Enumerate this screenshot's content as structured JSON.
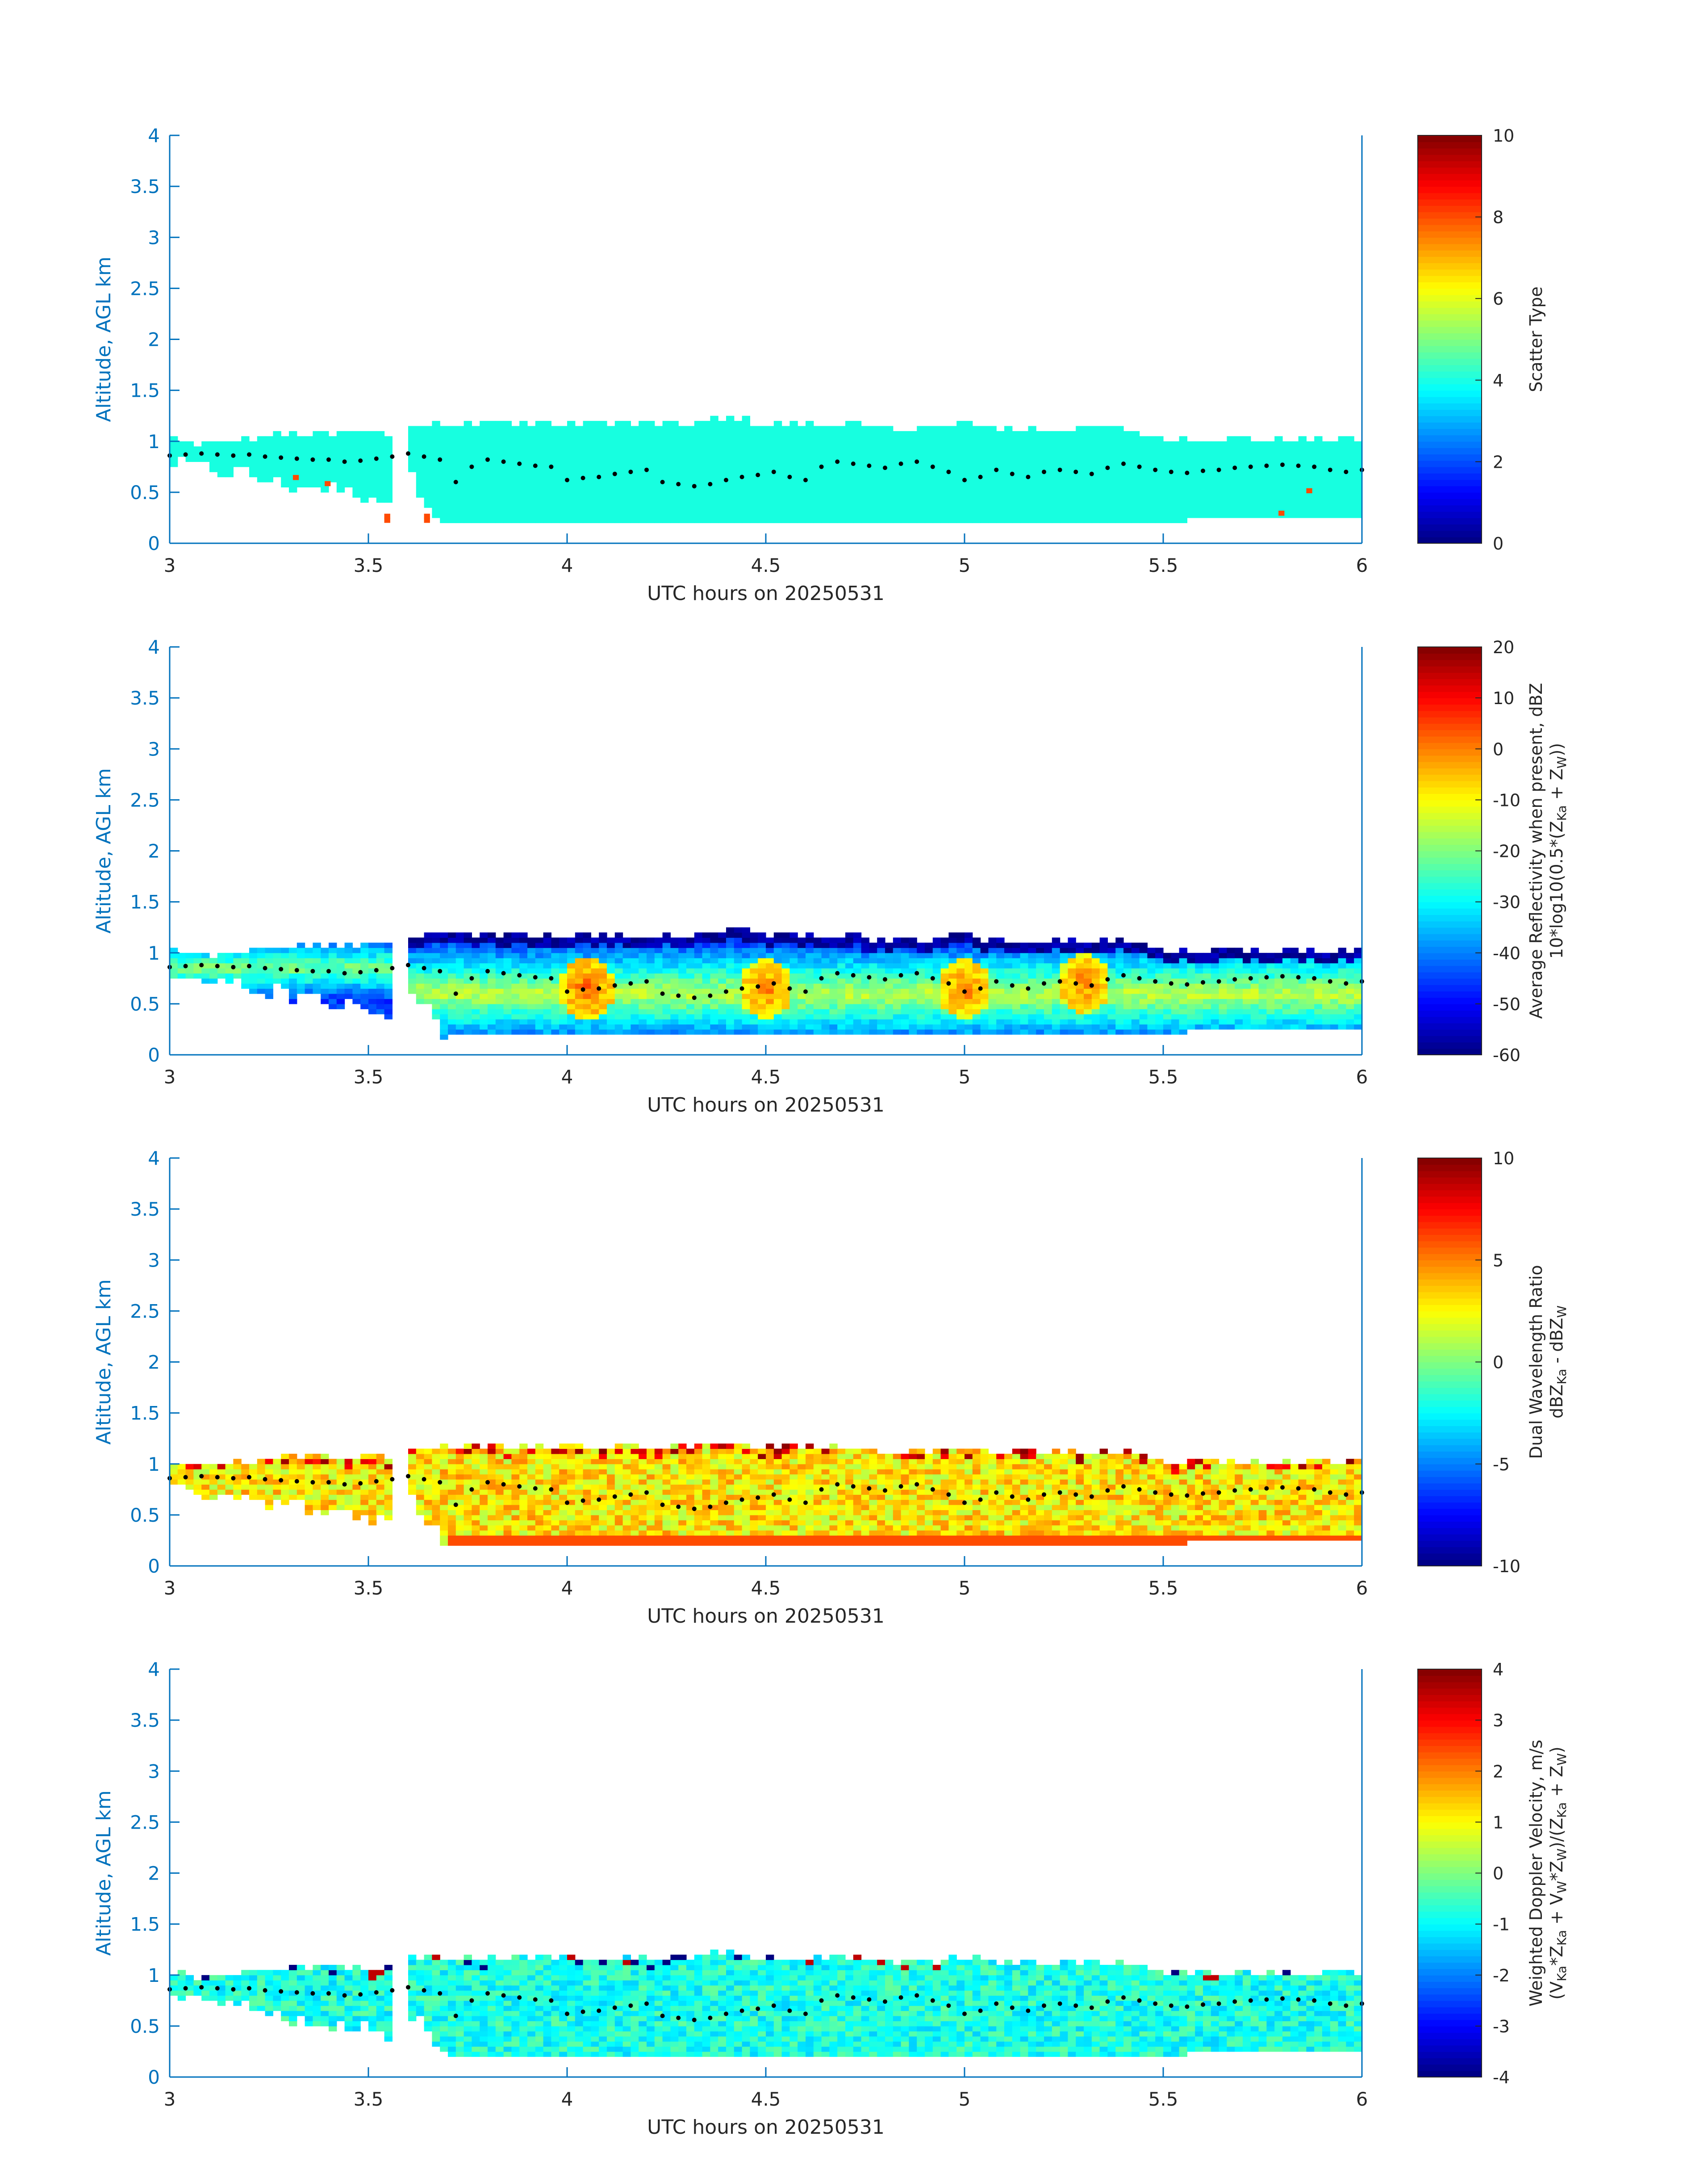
{
  "figure": {
    "colors": {
      "axis_blue": "#0072BD",
      "text_dark": "#262626",
      "cloud_cyan": "#17FFE0",
      "orange_flag": "#FF4A00",
      "marker_black": "#000000"
    },
    "colormap": "jet"
  },
  "chart_data": [
    {
      "type": "heatmap",
      "title": "",
      "xlabel": "UTC hours on 20250531",
      "ylabel": "Altitude, AGL km",
      "xlim": [
        3,
        6
      ],
      "ylim": [
        0,
        4
      ],
      "xticks": [
        "3",
        "3.5",
        "4",
        "4.5",
        "5",
        "5.5",
        "6"
      ],
      "yticks": [
        "0",
        "0.5",
        "1",
        "1.5",
        "2",
        "2.5",
        "3",
        "3.5",
        "4"
      ],
      "colorbar": {
        "label_lines": [
          "Scatter Type"
        ],
        "range": [
          0,
          10
        ],
        "ticks": [
          "0",
          "2",
          "4",
          "6",
          "8",
          "10"
        ]
      },
      "field": "scatter_type",
      "dominant_value": 3.8,
      "outlier_value": 8.5,
      "outlier_cells": [
        {
          "x": 3.31,
          "y": 0.62
        },
        {
          "x": 3.39,
          "y": 0.56
        },
        {
          "x": 3.54,
          "y": 0.24
        },
        {
          "x": 3.54,
          "y": 0.2
        },
        {
          "x": 3.64,
          "y": 0.24
        },
        {
          "x": 3.64,
          "y": 0.2
        },
        {
          "x": 5.79,
          "y": 0.27
        },
        {
          "x": 5.86,
          "y": 0.49
        }
      ]
    },
    {
      "type": "heatmap",
      "title": "",
      "xlabel": "UTC hours on 20250531",
      "ylabel": "Altitude, AGL km",
      "xlim": [
        3,
        6
      ],
      "ylim": [
        0,
        4
      ],
      "xticks": [
        "3",
        "3.5",
        "4",
        "4.5",
        "5",
        "5.5",
        "6"
      ],
      "yticks": [
        "0",
        "0.5",
        "1",
        "1.5",
        "2",
        "2.5",
        "3",
        "3.5",
        "4"
      ],
      "colorbar": {
        "label_lines": [
          "Average Reflectivity when present, dBZ",
          "10*log10(0.5*(Z",
          "Ka",
          " + Z",
          "W",
          "))"
        ],
        "range": [
          -60,
          20
        ],
        "ticks": [
          "-60",
          "-50",
          "-40",
          "-30",
          "-20",
          "-10",
          "0",
          "10",
          "20"
        ]
      },
      "field": "reflectivity_dbz",
      "hotspots_dbz": [
        {
          "x": 4.05,
          "y": 0.65,
          "value": 2
        },
        {
          "x": 4.5,
          "y": 0.65,
          "value": 0
        },
        {
          "x": 5.0,
          "y": 0.65,
          "value": 0
        },
        {
          "x": 5.3,
          "y": 0.7,
          "value": 0
        }
      ]
    },
    {
      "type": "heatmap",
      "title": "",
      "xlabel": "UTC hours on 20250531",
      "ylabel": "Altitude, AGL km",
      "xlim": [
        3,
        6
      ],
      "ylim": [
        0,
        4
      ],
      "xticks": [
        "3",
        "3.5",
        "4",
        "4.5",
        "5",
        "5.5",
        "6"
      ],
      "yticks": [
        "0",
        "0.5",
        "1",
        "1.5",
        "2",
        "2.5",
        "3",
        "3.5",
        "4"
      ],
      "colorbar": {
        "label_lines": [
          "Dual Wavelength Ratio",
          "dBZ",
          "Ka",
          " - dBZ",
          "W"
        ],
        "range": [
          -10,
          10
        ],
        "ticks": [
          "-10",
          "-5",
          "0",
          "5",
          "10"
        ]
      },
      "field": "dual_wavelength_ratio_db",
      "typical_value": 2.5
    },
    {
      "type": "heatmap",
      "title": "",
      "xlabel": "UTC hours on 20250531",
      "ylabel": "Altitude, AGL km",
      "xlim": [
        3,
        6
      ],
      "ylim": [
        0,
        4
      ],
      "xticks": [
        "3",
        "3.5",
        "4",
        "4.5",
        "5",
        "5.5",
        "6"
      ],
      "yticks": [
        "0",
        "0.5",
        "1",
        "1.5",
        "2",
        "2.5",
        "3",
        "3.5",
        "4"
      ],
      "colorbar": {
        "label_lines": [
          "Weighted Doppler Velocity, m/s",
          "(V",
          "Ka",
          "*Z",
          "Ka",
          " + V",
          "W",
          "*Z",
          "W",
          ")/(Z",
          "Ka",
          " + Z",
          "W",
          ")"
        ],
        "range": [
          -4,
          4
        ],
        "ticks": [
          "-4",
          "-3",
          "-2",
          "-1",
          "0",
          "1",
          "2",
          "3",
          "4"
        ]
      },
      "field": "doppler_velocity_ms",
      "typical_value": -0.8
    }
  ],
  "cloud_layer": {
    "time_hours": [
      3.0,
      3.1,
      3.2,
      3.3,
      3.4,
      3.5,
      3.55,
      3.6,
      3.7,
      3.8,
      3.9,
      4.0,
      4.1,
      4.2,
      4.3,
      4.4,
      4.5,
      4.6,
      4.7,
      4.8,
      4.9,
      5.0,
      5.1,
      5.2,
      5.3,
      5.4,
      5.5,
      5.6,
      5.7,
      5.8,
      5.9,
      6.0
    ],
    "top_km": [
      1.0,
      0.95,
      1.0,
      1.05,
      1.05,
      1.05,
      1.05,
      1.15,
      1.15,
      1.15,
      1.15,
      1.15,
      1.15,
      1.15,
      1.15,
      1.2,
      1.15,
      1.15,
      1.15,
      1.1,
      1.1,
      1.15,
      1.1,
      1.1,
      1.1,
      1.1,
      1.0,
      1.0,
      1.0,
      1.0,
      1.0,
      1.0
    ],
    "base_km": [
      0.8,
      0.75,
      0.7,
      0.6,
      0.55,
      0.5,
      0.45,
      0.7,
      0.2,
      0.2,
      0.2,
      0.2,
      0.2,
      0.2,
      0.2,
      0.2,
      0.2,
      0.2,
      0.2,
      0.2,
      0.2,
      0.2,
      0.2,
      0.2,
      0.2,
      0.2,
      0.2,
      0.3,
      0.3,
      0.25,
      0.3,
      0.3
    ],
    "gaps_hours": [
      [
        3.56,
        3.6
      ]
    ],
    "marker_times": [
      3.0,
      3.04,
      3.08,
      3.12,
      3.16,
      3.2,
      3.24,
      3.28,
      3.32,
      3.36,
      3.4,
      3.44,
      3.48,
      3.52,
      3.56,
      3.6,
      3.64,
      3.68,
      3.72,
      3.76,
      3.8,
      3.84,
      3.88,
      3.92,
      3.96,
      4.0,
      4.04,
      4.08,
      4.12,
      4.16,
      4.2,
      4.24,
      4.28,
      4.32,
      4.36,
      4.4,
      4.44,
      4.48,
      4.52,
      4.56,
      4.6,
      4.64,
      4.68,
      4.72,
      4.76,
      4.8,
      4.84,
      4.88,
      4.92,
      4.96,
      5.0,
      5.04,
      5.08,
      5.12,
      5.16,
      5.2,
      5.24,
      5.28,
      5.32,
      5.36,
      5.4,
      5.44,
      5.48,
      5.52,
      5.56,
      5.6,
      5.64,
      5.68,
      5.72,
      5.76,
      5.8,
      5.84,
      5.88,
      5.92,
      5.96,
      6.0
    ],
    "marker_alt_km": [
      0.86,
      0.87,
      0.88,
      0.87,
      0.86,
      0.87,
      0.85,
      0.84,
      0.83,
      0.82,
      0.82,
      0.8,
      0.81,
      0.83,
      0.85,
      0.88,
      0.85,
      0.82,
      0.6,
      0.75,
      0.82,
      0.8,
      0.78,
      0.76,
      0.75,
      0.62,
      0.64,
      0.65,
      0.68,
      0.7,
      0.72,
      0.6,
      0.58,
      0.56,
      0.58,
      0.62,
      0.65,
      0.67,
      0.7,
      0.65,
      0.62,
      0.75,
      0.8,
      0.78,
      0.76,
      0.74,
      0.78,
      0.8,
      0.75,
      0.7,
      0.62,
      0.65,
      0.72,
      0.68,
      0.65,
      0.7,
      0.72,
      0.7,
      0.68,
      0.74,
      0.78,
      0.75,
      0.72,
      0.7,
      0.69,
      0.71,
      0.72,
      0.74,
      0.75,
      0.76,
      0.77,
      0.76,
      0.75,
      0.72,
      0.7,
      0.72
    ]
  }
}
